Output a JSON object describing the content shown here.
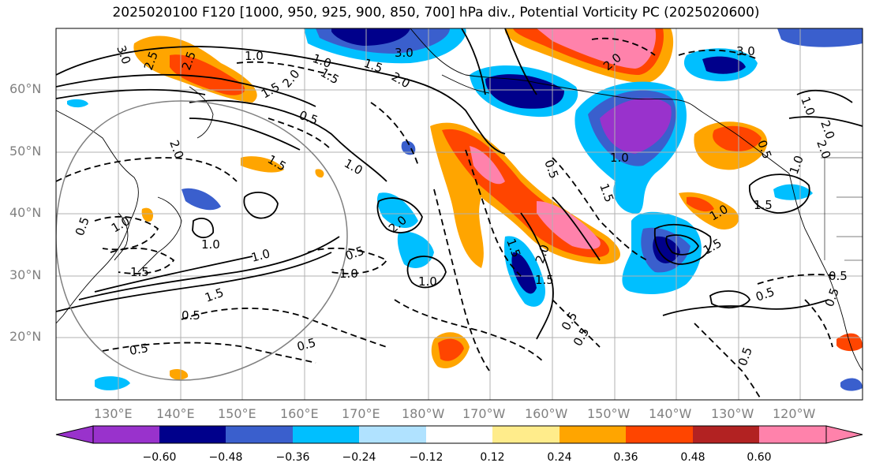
{
  "title": "2025020100 F120 [1000, 950, 925, 900, 850, 700] hPa div., Potential Vorticity PC (2025020600)",
  "lat_labels": [
    "60°N",
    "50°N",
    "40°N",
    "30°N",
    "20°N"
  ],
  "lon_labels": [
    "130°E",
    "140°E",
    "150°E",
    "160°E",
    "170°E",
    "180°W",
    "170°W",
    "160°W",
    "150°W",
    "140°W",
    "130°W",
    "120°W"
  ],
  "colorbar": {
    "colors": [
      "#9932CC",
      "#00008B",
      "#3A5FCD",
      "#00BFFF",
      "#B0E2FF",
      "#FFFFFF",
      "#FFEC8B",
      "#FFA500",
      "#FF4500",
      "#B22222",
      "#FF82AB"
    ],
    "tick_labels": [
      "−0.60",
      "−0.48",
      "−0.36",
      "−0.24",
      "−0.12",
      "0.12",
      "0.24",
      "0.36",
      "0.48",
      "0.60"
    ]
  },
  "contour_labels": [
    "3.0",
    "2.5",
    "1.0",
    "1.5",
    "2.0",
    "1.0",
    "0.5",
    "2.0",
    "1.0",
    "1.5",
    "0.5",
    "1.0",
    "1.5",
    "0.5",
    "0.5",
    "1.0",
    "1.0",
    "2.0",
    "1.0",
    "1.5",
    "0.5",
    "0.5",
    "1.0",
    "1.5",
    "2.0",
    "3.0",
    "1.5",
    "2.5",
    "1.0",
    "1.5",
    "2.0",
    "1.5",
    "0.5",
    "0.5",
    "0.5",
    "1.5",
    "2.0",
    "1.5",
    "0.5",
    "1.0",
    "0.5",
    "0.5",
    "0.5",
    "0.5",
    "1.0",
    "1.0",
    "1.5",
    "2.0",
    "3.0",
    "2.0"
  ]
}
